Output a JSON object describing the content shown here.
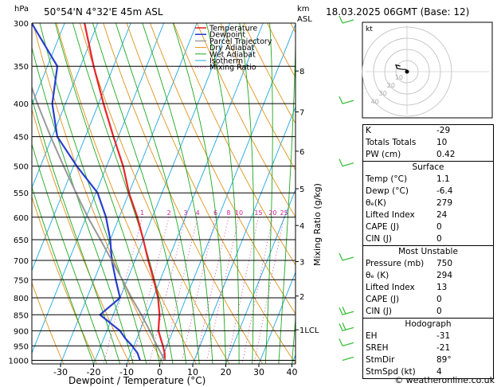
{
  "header": {
    "station": "50°54'N  4°32'E  45m  ASL",
    "datetime": "18.03.2025  06GMT  (Base: 12)",
    "hpa_label": "hPa",
    "km_label": "km",
    "asl_label": "ASL"
  },
  "chart_data": {
    "type": "line",
    "xlabel": "Dewpoint / Temperature (°C)",
    "ylabel_right": "Mixing Ratio (g/kg)",
    "x_ticks": [
      -30,
      -20,
      -10,
      0,
      10,
      20,
      30,
      40
    ],
    "pressure_ticks": [
      300,
      350,
      400,
      450,
      500,
      550,
      600,
      650,
      700,
      750,
      800,
      850,
      900,
      950,
      1000
    ],
    "km_ticks": [
      {
        "km": "1LCL",
        "p": 897
      },
      {
        "km": "2",
        "p": 795
      },
      {
        "km": "3",
        "p": 703
      },
      {
        "km": "4",
        "p": 618
      },
      {
        "km": "5",
        "p": 542
      },
      {
        "km": "6",
        "p": 474
      },
      {
        "km": "7",
        "p": 412
      },
      {
        "km": "8",
        "p": 356
      }
    ],
    "mixing_ratio_labels": [
      "1",
      "2",
      "3",
      "4",
      "6",
      "8",
      "10",
      "15",
      "20",
      "25"
    ],
    "legend": [
      "Temperature",
      "Dewpoint",
      "Parcel Trajectory",
      "Dry Adiabat",
      "Wet Adiabat",
      "Isotherm",
      "Mixing Ratio"
    ],
    "legend_position": "top-right",
    "series": [
      {
        "name": "Temperature",
        "color": "#e8262c",
        "points": [
          [
            1000,
            1.1
          ],
          [
            975,
            0.2
          ],
          [
            950,
            -1.2
          ],
          [
            925,
            -2.8
          ],
          [
            900,
            -4.4
          ],
          [
            875,
            -5.2
          ],
          [
            850,
            -6.0
          ],
          [
            800,
            -8.5
          ],
          [
            750,
            -12.0
          ],
          [
            700,
            -16.0
          ],
          [
            650,
            -20.0
          ],
          [
            600,
            -24.5
          ],
          [
            550,
            -30.0
          ],
          [
            500,
            -35.0
          ],
          [
            450,
            -41.5
          ],
          [
            400,
            -48.5
          ],
          [
            350,
            -56.0
          ],
          [
            300,
            -64.0
          ]
        ]
      },
      {
        "name": "Dewpoint",
        "color": "#2a3fd0",
        "points": [
          [
            1000,
            -6.4
          ],
          [
            975,
            -8.0
          ],
          [
            950,
            -10.5
          ],
          [
            925,
            -13.5
          ],
          [
            900,
            -16.0
          ],
          [
            850,
            -24.0
          ],
          [
            800,
            -20.0
          ],
          [
            750,
            -23.5
          ],
          [
            700,
            -27.0
          ],
          [
            650,
            -30.0
          ],
          [
            600,
            -34.0
          ],
          [
            550,
            -39.5
          ],
          [
            500,
            -49.0
          ],
          [
            450,
            -58.5
          ],
          [
            400,
            -64.0
          ],
          [
            350,
            -67.0
          ],
          [
            300,
            -80.0
          ]
        ]
      },
      {
        "name": "Parcel Trajectory",
        "color": "#999999",
        "points": [
          [
            1000,
            1.1
          ],
          [
            950,
            -3.0
          ],
          [
            900,
            -7.0
          ],
          [
            850,
            -11.5
          ],
          [
            800,
            -16.5
          ],
          [
            750,
            -21.5
          ],
          [
            700,
            -27.0
          ],
          [
            650,
            -33.0
          ],
          [
            600,
            -39.5
          ],
          [
            550,
            -46.0
          ],
          [
            500,
            -53.0
          ],
          [
            450,
            -60.5
          ],
          [
            400,
            -68.5
          ],
          [
            350,
            -77.0
          ],
          [
            300,
            -86.0
          ]
        ]
      }
    ]
  },
  "hodograph": {
    "label": "kt",
    "ring_labels": [
      "10",
      "20",
      "30",
      "40"
    ],
    "trace": [
      [
        0,
        0
      ],
      [
        -1,
        2
      ],
      [
        -4,
        2
      ],
      [
        -9,
        3
      ],
      [
        -10,
        6
      ],
      [
        -6,
        5
      ]
    ]
  },
  "indices": {
    "rows": [
      {
        "key": "K",
        "value": "-29"
      },
      {
        "key": "Totals Totals",
        "value": "10"
      },
      {
        "key": "PW (cm)",
        "value": "0.42"
      }
    ]
  },
  "surface": {
    "title": "Surface",
    "rows": [
      {
        "key": "Temp (°C)",
        "value": "1.1"
      },
      {
        "key": "Dewp (°C)",
        "value": "-6.4"
      },
      {
        "key": "θₑ(K)",
        "value": "279"
      },
      {
        "key": "Lifted Index",
        "value": "24"
      },
      {
        "key": "CAPE (J)",
        "value": "0"
      },
      {
        "key": "CIN (J)",
        "value": "0"
      }
    ]
  },
  "most_unstable": {
    "title": "Most Unstable",
    "rows": [
      {
        "key": "Pressure (mb)",
        "value": "750"
      },
      {
        "key": "θₑ (K)",
        "value": "294"
      },
      {
        "key": "Lifted Index",
        "value": "13"
      },
      {
        "key": "CAPE (J)",
        "value": "0"
      },
      {
        "key": "CIN (J)",
        "value": "0"
      }
    ]
  },
  "hodograph_params": {
    "title": "Hodograph",
    "rows": [
      {
        "key": "EH",
        "value": "-31"
      },
      {
        "key": "SREH",
        "value": "-21"
      },
      {
        "key": "StmDir",
        "value": "89°"
      },
      {
        "key": "StmSpd (kt)",
        "value": "4"
      }
    ]
  },
  "footer": "© weatheronline.co.uk",
  "colors": {
    "temperature": "#e8262c",
    "dewpoint": "#2a3fd0",
    "parcel": "#999999",
    "dry_adiabat": "#e0921a",
    "wet_adiabat": "#1fa81f",
    "isotherm": "#20a8e0",
    "mixing_ratio": "#d0209a",
    "wind": "#3cc03c"
  }
}
